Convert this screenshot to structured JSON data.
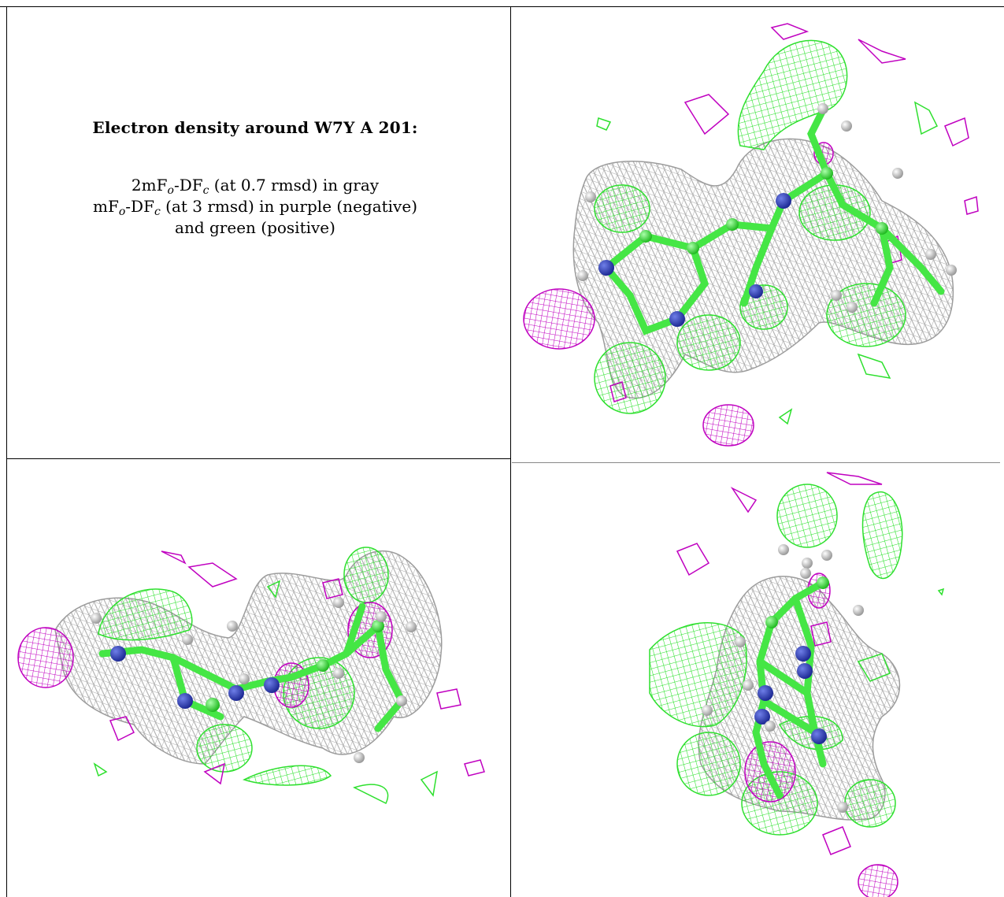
{
  "caption": {
    "title": "Electron density around W7Y A 201:",
    "line1_pre": "2mF",
    "line1_sub1": "o",
    "line1_mid": "-DF",
    "line1_sub2": "c",
    "line1_post": " (at 0.7 rmsd) in gray",
    "line2_pre": "mF",
    "line2_sub1": "o",
    "line2_mid": "-DF",
    "line2_sub2": "c",
    "line2_post": " (at 3 rmsd) in purple (negative)",
    "line3": "and green (positive)"
  },
  "colors": {
    "gray_mesh": "#b4b4b4",
    "purple_mesh": "#c000c0",
    "green_mesh": "#33ee33",
    "carbon": "#44ee44",
    "nitrogen": "#3344cc",
    "hydrogen": "#dddddd"
  },
  "panels": [
    {
      "name": "view-top-right"
    },
    {
      "name": "view-bottom-left"
    },
    {
      "name": "view-bottom-right"
    }
  ]
}
